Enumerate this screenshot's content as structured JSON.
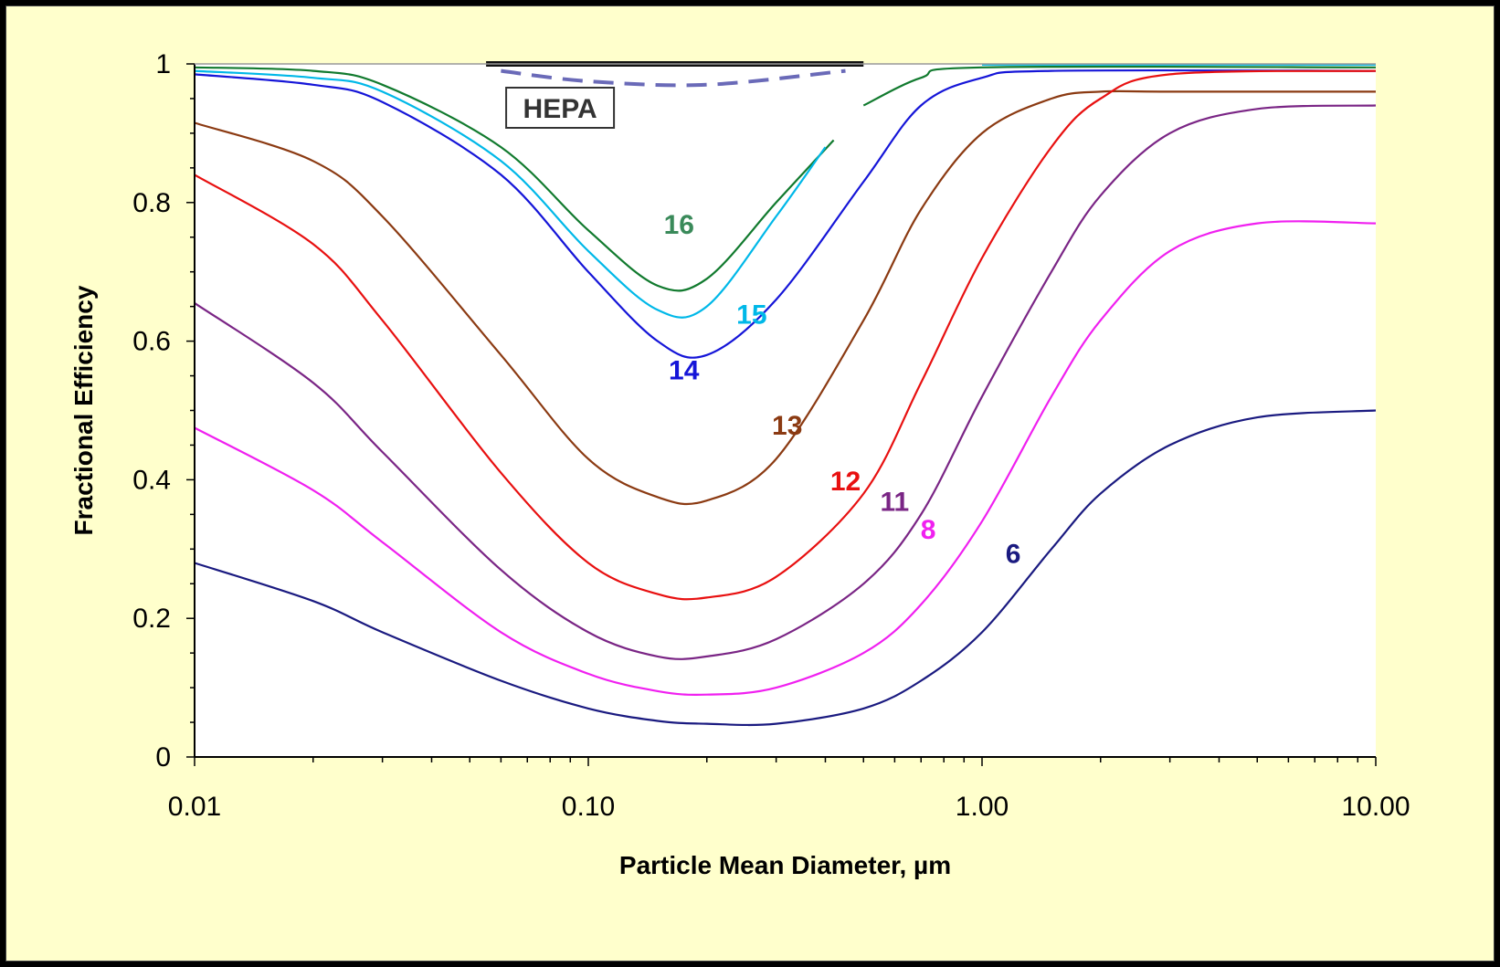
{
  "chart_data": {
    "type": "line",
    "title": "",
    "xlabel": "Particle Mean Diameter, µm",
    "ylabel": "Fractional Efficiency",
    "x_scale": "log",
    "xlim": [
      0.01,
      10
    ],
    "ylim": [
      0,
      1
    ],
    "x_ticks": [
      "0.01",
      "0.10",
      "1.00",
      "10.00"
    ],
    "y_ticks": [
      "0",
      "0.2",
      "0.4",
      "0.6",
      "0.8",
      "1"
    ],
    "grid": false,
    "legend": "none",
    "background": "#ffffcc",
    "plot_background": "#ffffff",
    "hepa": {
      "label": "HEPA",
      "solid_x": [
        0.055,
        0.5
      ],
      "solid_y": 1.0,
      "dashed": {
        "x": [
          0.06,
          0.1,
          0.2,
          0.45
        ],
        "y": [
          0.99,
          0.975,
          0.97,
          0.99
        ]
      }
    },
    "series": [
      {
        "name": "16",
        "color": "#117a2e",
        "x": [
          0.01,
          0.02,
          0.03,
          0.06,
          0.1,
          0.15,
          0.2,
          0.3,
          0.42
        ],
        "y": [
          0.995,
          0.99,
          0.97,
          0.88,
          0.76,
          0.68,
          0.69,
          0.8,
          0.89
        ],
        "x2": [
          0.5,
          0.7,
          1.0,
          10.0
        ],
        "y2": [
          0.94,
          0.98,
          0.995,
          0.995
        ]
      },
      {
        "name": "15",
        "color": "#00b8e8",
        "x": [
          0.01,
          0.02,
          0.03,
          0.06,
          0.1,
          0.15,
          0.2,
          0.3,
          0.4
        ],
        "y": [
          0.99,
          0.98,
          0.96,
          0.86,
          0.73,
          0.645,
          0.65,
          0.78,
          0.88
        ],
        "x2": [
          1.0,
          10.0
        ],
        "y2": [
          0.999,
          0.999
        ]
      },
      {
        "name": "14",
        "color": "#1515d8",
        "x": [
          0.01,
          0.02,
          0.03,
          0.06,
          0.1,
          0.15,
          0.2,
          0.3,
          0.5,
          0.7,
          1.0,
          1.5,
          10.0
        ],
        "y": [
          0.985,
          0.97,
          0.945,
          0.84,
          0.7,
          0.6,
          0.58,
          0.66,
          0.83,
          0.94,
          0.98,
          0.99,
          0.99
        ]
      },
      {
        "name": "13",
        "color": "#8b3a12",
        "x": [
          0.01,
          0.02,
          0.03,
          0.06,
          0.1,
          0.15,
          0.2,
          0.3,
          0.5,
          0.7,
          1.0,
          1.5,
          2.0,
          3.0,
          10.0
        ],
        "y": [
          0.915,
          0.86,
          0.78,
          0.58,
          0.43,
          0.375,
          0.37,
          0.43,
          0.63,
          0.79,
          0.9,
          0.95,
          0.96,
          0.96,
          0.96
        ]
      },
      {
        "name": "12",
        "color": "#e81010",
        "x": [
          0.01,
          0.02,
          0.03,
          0.06,
          0.1,
          0.15,
          0.2,
          0.3,
          0.5,
          0.7,
          1.0,
          1.5,
          2.0,
          3.0,
          10.0
        ],
        "y": [
          0.84,
          0.74,
          0.63,
          0.41,
          0.28,
          0.235,
          0.23,
          0.26,
          0.38,
          0.54,
          0.72,
          0.88,
          0.95,
          0.985,
          0.99
        ]
      },
      {
        "name": "11",
        "color": "#7a2585",
        "x": [
          0.01,
          0.02,
          0.03,
          0.06,
          0.1,
          0.15,
          0.2,
          0.3,
          0.5,
          0.7,
          1.0,
          1.5,
          2.0,
          3.0,
          5.0,
          10.0
        ],
        "y": [
          0.655,
          0.54,
          0.44,
          0.27,
          0.18,
          0.145,
          0.145,
          0.17,
          0.25,
          0.35,
          0.52,
          0.7,
          0.81,
          0.9,
          0.935,
          0.94
        ]
      },
      {
        "name": "8",
        "color": "#f020f0",
        "x": [
          0.01,
          0.02,
          0.03,
          0.06,
          0.1,
          0.15,
          0.2,
          0.3,
          0.5,
          0.7,
          1.0,
          1.5,
          2.0,
          3.0,
          5.0,
          10.0
        ],
        "y": [
          0.475,
          0.385,
          0.31,
          0.18,
          0.12,
          0.095,
          0.09,
          0.1,
          0.15,
          0.22,
          0.34,
          0.52,
          0.63,
          0.73,
          0.77,
          0.77
        ]
      },
      {
        "name": "6",
        "color": "#1a1a80",
        "x": [
          0.01,
          0.02,
          0.03,
          0.06,
          0.1,
          0.15,
          0.2,
          0.3,
          0.5,
          0.7,
          1.0,
          1.5,
          2.0,
          3.0,
          5.0,
          10.0
        ],
        "y": [
          0.28,
          0.225,
          0.18,
          0.11,
          0.07,
          0.052,
          0.048,
          0.048,
          0.07,
          0.11,
          0.18,
          0.3,
          0.38,
          0.45,
          0.49,
          0.5
        ]
      }
    ],
    "labels": [
      {
        "text": "16",
        "x": 0.17,
        "y": 0.755,
        "color": "#3a8a5a"
      },
      {
        "text": "15",
        "x": 0.26,
        "y": 0.625,
        "color": "#00b8e8"
      },
      {
        "text": "14",
        "x": 0.175,
        "y": 0.545,
        "color": "#1515d8"
      },
      {
        "text": "13",
        "x": 0.32,
        "y": 0.465,
        "color": "#8b3a12"
      },
      {
        "text": "12",
        "x": 0.45,
        "y": 0.385,
        "color": "#e81010"
      },
      {
        "text": "11",
        "x": 0.6,
        "y": 0.355,
        "color": "#7a2585"
      },
      {
        "text": "8",
        "x": 0.73,
        "y": 0.315,
        "color": "#f020f0"
      },
      {
        "text": "6",
        "x": 1.2,
        "y": 0.28,
        "color": "#1a1a80"
      }
    ]
  }
}
